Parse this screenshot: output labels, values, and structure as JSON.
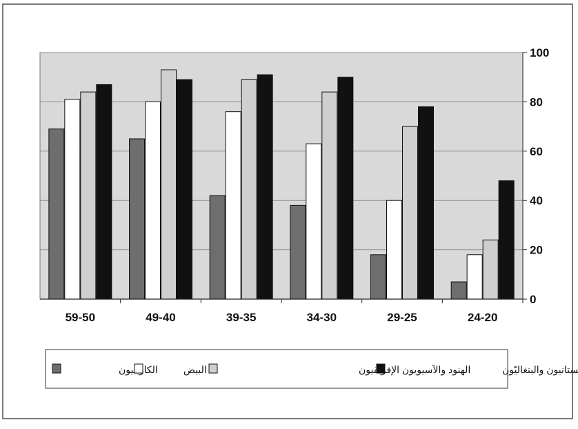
{
  "chart_data": {
    "type": "bar",
    "categories": [
      "59-50",
      "49-40",
      "39-35",
      "34-30",
      "29-25",
      "24-20"
    ],
    "series": [
      {
        "name": "الكاريبيون",
        "values": [
          69,
          65,
          42,
          38,
          18,
          7
        ],
        "color": "#6e6e6e"
      },
      {
        "name": "البيض",
        "values": [
          81,
          80,
          76,
          63,
          40,
          18
        ],
        "color": "#ffffff"
      },
      {
        "name": "الهنود والآسيويون الإفريقيون",
        "values": [
          84,
          93,
          89,
          84,
          70,
          24
        ],
        "color": "#cfcfcf"
      },
      {
        "name": "الباكستانيون والبنغاليّون",
        "values": [
          87,
          89,
          91,
          90,
          78,
          48
        ],
        "color": "#111111"
      }
    ],
    "yticks": [
      0,
      20,
      40,
      60,
      80,
      100
    ],
    "ylim": [
      0,
      100
    ],
    "grid": true,
    "plot_background": "#d9d9d9",
    "legend_placement": "bottom"
  }
}
